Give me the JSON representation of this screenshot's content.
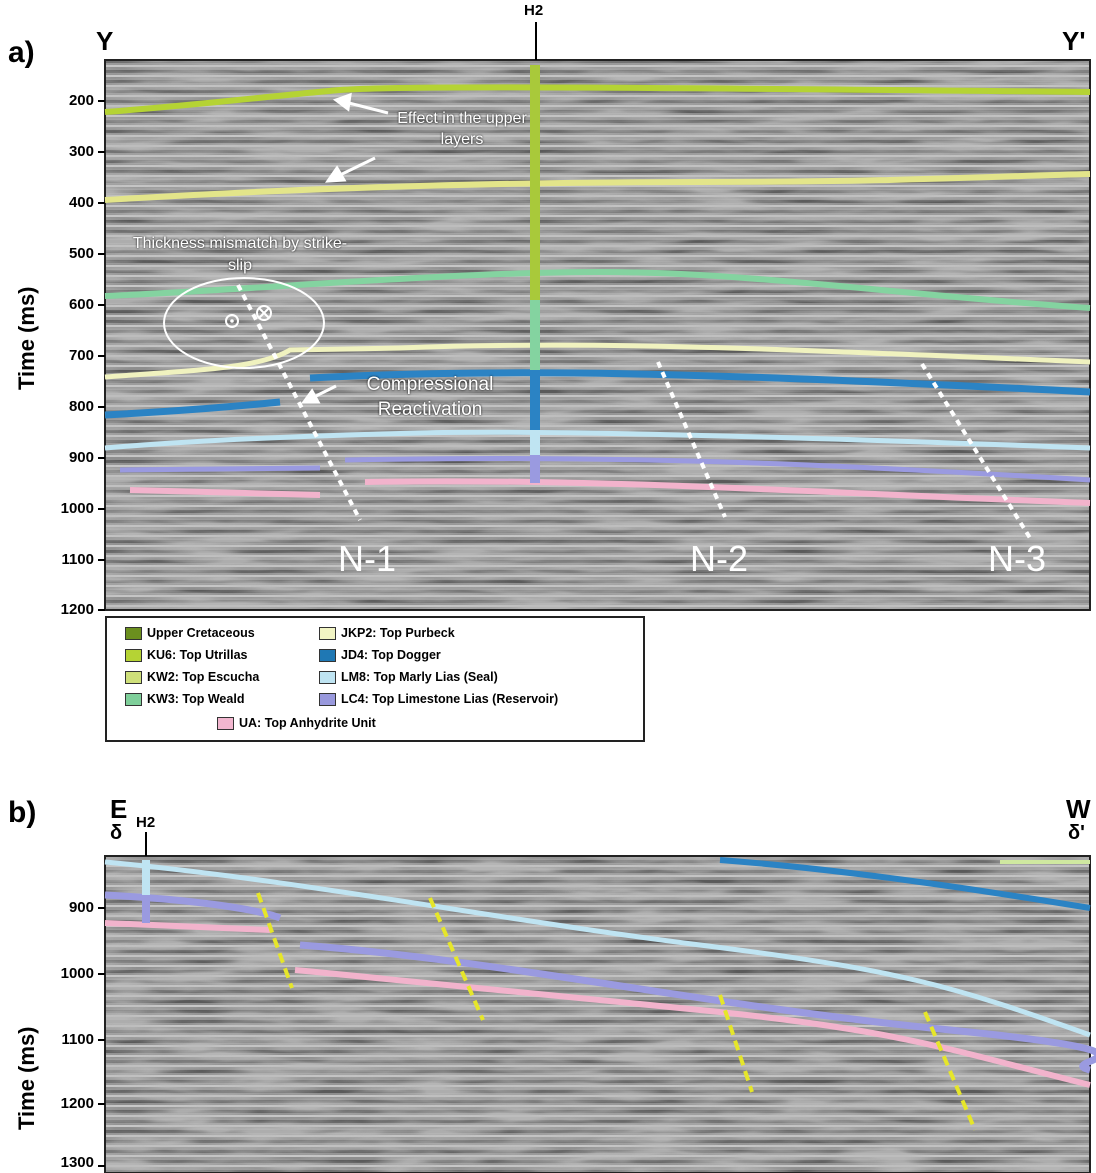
{
  "panel_a": {
    "label": "a)",
    "left_end": "Y",
    "right_end": "Y'",
    "well": "H2",
    "y_axis_label": "Time (ms)",
    "y_ticks": [
      "200",
      "300",
      "400",
      "500",
      "600",
      "700",
      "800",
      "900",
      "1000",
      "1100",
      "1200"
    ],
    "annotations": {
      "effect": "Effect in the upper layers",
      "thickness": "Thickness mismatch by strike-slip",
      "compression": "Compressional Reactivation"
    },
    "faults": [
      "N-1",
      "N-2",
      "N-3"
    ]
  },
  "legend": [
    {
      "label": "Upper Cretaceous",
      "color": "#6b8f1e"
    },
    {
      "label": "KU6: Top Utrillas",
      "color": "#b5d334"
    },
    {
      "label": "KW2: Top Escucha",
      "color": "#cfe07a"
    },
    {
      "label": "KW3: Top Weald",
      "color": "#7fcf9a"
    },
    {
      "label": "JKP2: Top Purbeck",
      "color": "#f2f5c4"
    },
    {
      "label": "JD4: Top Dogger",
      "color": "#1f78b4"
    },
    {
      "label": "LM8: Top Marly Lias (Seal)",
      "color": "#bfe4f2"
    },
    {
      "label": "LC4: Top Limestone Lias (Reservoir)",
      "color": "#9999dd"
    },
    {
      "label": "UA: Top Anhydrite Unit",
      "color": "#f2b6cf"
    }
  ],
  "panel_b": {
    "label": "b)",
    "left_end": "E",
    "left_sub": "δ",
    "right_end": "W",
    "right_sub": "δ'",
    "well": "H2",
    "y_axis_label": "Time (ms)",
    "y_ticks": [
      "900",
      "1000",
      "1100",
      "1200",
      "1300"
    ]
  },
  "colors": {
    "seismic_bg": "#9a9a9a",
    "upper_cret": "#9cc23a",
    "ku6": "#b5d334",
    "kw2": "#e3e58a",
    "kw3": "#84d3a0",
    "jkp2": "#f0f2bf",
    "jd4": "#2b83c4",
    "lm8": "#bfe4f2",
    "lc4": "#9a9ae0",
    "ua": "#f2b3cc",
    "fault_a": "#ffffff",
    "fault_b": "#e6e62a"
  }
}
